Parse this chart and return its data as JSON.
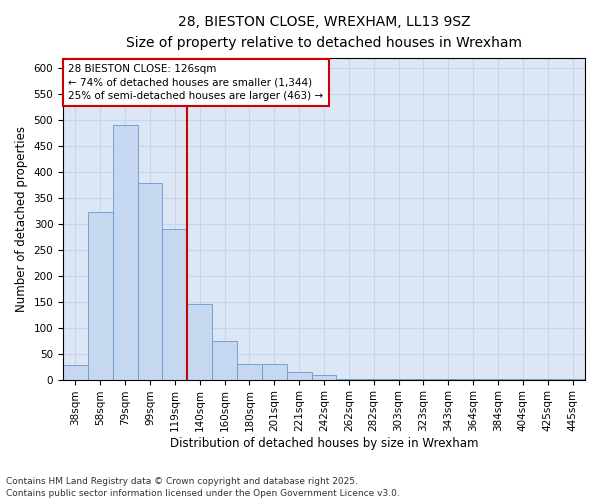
{
  "title_line1": "28, BIESTON CLOSE, WREXHAM, LL13 9SZ",
  "title_line2": "Size of property relative to detached houses in Wrexham",
  "xlabel": "Distribution of detached houses by size in Wrexham",
  "ylabel": "Number of detached properties",
  "categories": [
    "38sqm",
    "58sqm",
    "79sqm",
    "99sqm",
    "119sqm",
    "140sqm",
    "160sqm",
    "180sqm",
    "201sqm",
    "221sqm",
    "242sqm",
    "262sqm",
    "282sqm",
    "303sqm",
    "323sqm",
    "343sqm",
    "364sqm",
    "384sqm",
    "404sqm",
    "425sqm",
    "445sqm"
  ],
  "values": [
    28,
    322,
    490,
    378,
    290,
    145,
    75,
    30,
    30,
    15,
    8,
    2,
    2,
    2,
    2,
    2,
    2,
    1,
    1,
    1,
    2
  ],
  "bar_color": "#c5d8f0",
  "bar_edge_color": "#6699cc",
  "vline_index": 4.5,
  "ref_line_label": "28 BIESTON CLOSE: 126sqm",
  "annotation_left": "← 74% of detached houses are smaller (1,344)",
  "annotation_right": "25% of semi-detached houses are larger (463) →",
  "annotation_box_facecolor": "#ffffff",
  "annotation_box_edgecolor": "#cc0000",
  "vline_color": "#cc0000",
  "grid_color": "#c8d4e8",
  "background_color": "#dce6f5",
  "ylim": [
    0,
    620
  ],
  "yticks": [
    0,
    50,
    100,
    150,
    200,
    250,
    300,
    350,
    400,
    450,
    500,
    550,
    600
  ],
  "footer1": "Contains HM Land Registry data © Crown copyright and database right 2025.",
  "footer2": "Contains public sector information licensed under the Open Government Licence v3.0.",
  "title_fontsize": 10,
  "subtitle_fontsize": 9,
  "axis_label_fontsize": 8.5,
  "tick_fontsize": 7.5,
  "annotation_fontsize": 7.5,
  "footer_fontsize": 6.5
}
